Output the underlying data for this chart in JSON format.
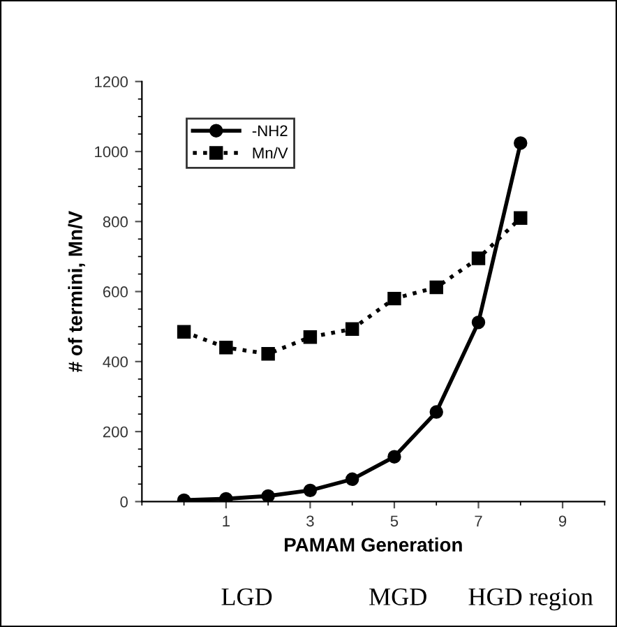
{
  "chart_data": {
    "type": "line",
    "xlabel": "PAMAM Generation",
    "ylabel": "# of termini, Mn/V",
    "x": [
      0,
      1,
      2,
      3,
      4,
      5,
      6,
      7,
      8
    ],
    "series": [
      {
        "name": "-NH2",
        "color": "#000000",
        "marker": "circle",
        "line_style": "solid",
        "values": [
          4,
          8,
          16,
          32,
          64,
          128,
          256,
          512,
          1024
        ]
      },
      {
        "name": "Mn/V",
        "color": "#000000",
        "marker": "square",
        "line_style": "dotted",
        "values": [
          485,
          440,
          422,
          470,
          493,
          580,
          612,
          695,
          810
        ]
      }
    ],
    "xlim": [
      -1,
      10
    ],
    "xticks": [
      1,
      3,
      5,
      7,
      9
    ],
    "ylim": [
      0,
      1200
    ],
    "yticks": [
      0,
      200,
      400,
      600,
      800,
      1000,
      1200
    ],
    "grid": false,
    "legend": "top left",
    "annotations": [
      "LGD",
      "MGD",
      "HGD region"
    ]
  }
}
